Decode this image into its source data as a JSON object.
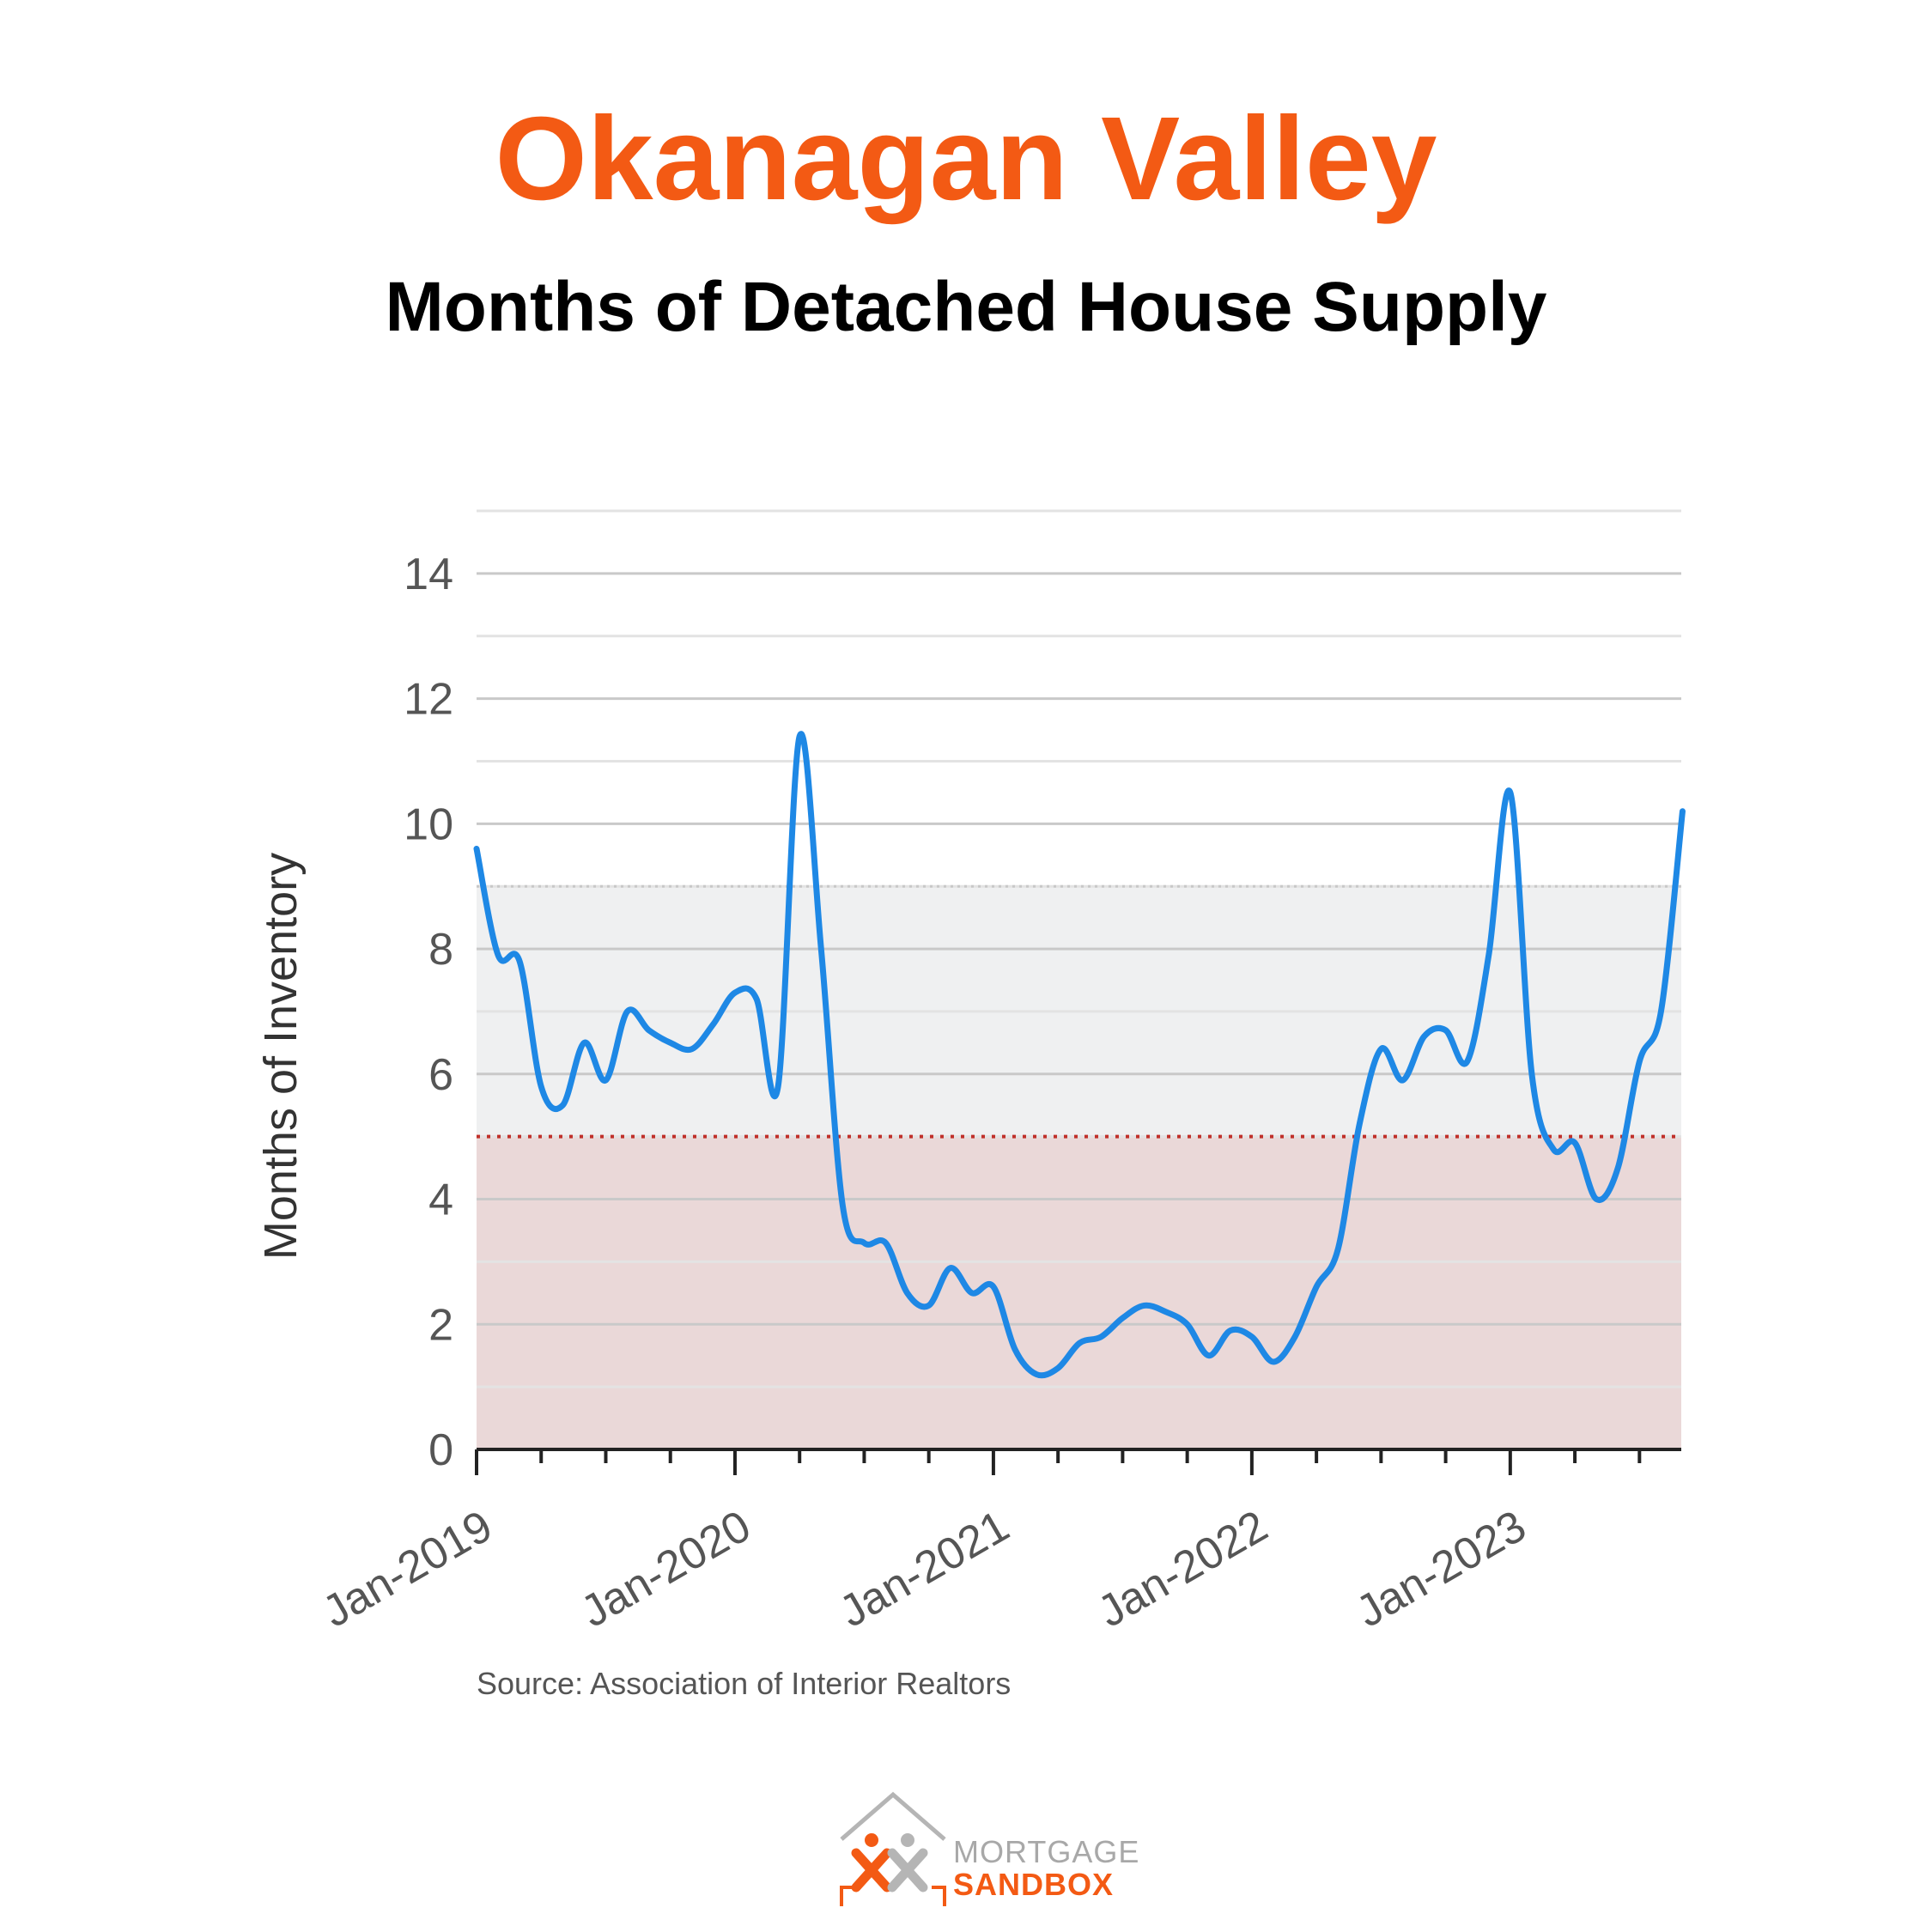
{
  "header": {
    "title": "Okanagan Valley",
    "subtitle": "Months of Detached House Supply"
  },
  "source": "Source: Association of Interior Realtors",
  "logo": {
    "line1": "MORTGAGE",
    "line2": "SANDBOX",
    "icon": "house-outline-icon"
  },
  "colors": {
    "title": "#f35a14",
    "line": "#1e88e5",
    "band_balanced": "#eff0f1",
    "band_sellers": "#ead8d8",
    "threshold_line": "#c0302a"
  },
  "chart_data": {
    "type": "line",
    "title": "",
    "xlabel": "",
    "ylabel": "Months of Inventory",
    "ylim": [
      0,
      15
    ],
    "yticks": [
      "0",
      "2",
      "4",
      "6",
      "8",
      "10",
      "12",
      "14"
    ],
    "xticks": [
      "Jan-2019",
      "Jan-2020",
      "Jan-2021",
      "Jan-2022",
      "Jan-2023"
    ],
    "grid": true,
    "bands": [
      {
        "from": 0,
        "to": 5
      },
      {
        "from": 5,
        "to": 9
      }
    ],
    "threshold": 5,
    "series": [
      {
        "x": [
          "2019-01",
          "2019-02",
          "2019-03",
          "2019-04",
          "2019-05",
          "2019-06",
          "2019-07",
          "2019-08",
          "2019-09",
          "2019-10",
          "2019-11",
          "2019-12",
          "2020-01",
          "2020-02",
          "2020-03",
          "2020-04",
          "2020-05",
          "2020-06",
          "2020-07",
          "2020-08",
          "2020-09",
          "2020-10",
          "2020-11",
          "2020-12",
          "2021-01",
          "2021-02",
          "2021-03",
          "2021-04",
          "2021-05",
          "2021-06",
          "2021-07",
          "2021-08",
          "2021-09",
          "2021-10",
          "2021-11",
          "2021-12",
          "2022-01",
          "2022-02",
          "2022-03",
          "2022-04",
          "2022-05",
          "2022-06",
          "2022-07",
          "2022-08",
          "2022-09",
          "2022-10",
          "2022-11",
          "2022-12",
          "2023-01",
          "2023-02",
          "2023-03",
          "2023-04",
          "2023-05",
          "2023-06",
          "2023-07",
          "2023-08",
          "2023-09"
        ],
        "values": [
          9.6,
          7.9,
          7.8,
          5.8,
          5.5,
          6.5,
          5.9,
          7.0,
          6.7,
          6.5,
          6.4,
          6.8,
          7.3,
          7.2,
          5.8,
          11.4,
          8.0,
          3.9,
          3.3,
          3.3,
          2.5,
          2.3,
          2.9,
          2.5,
          2.6,
          1.6,
          1.2,
          1.3,
          1.7,
          1.8,
          2.1,
          2.3,
          2.2,
          2.0,
          1.5,
          1.9,
          1.8,
          1.4,
          1.8,
          2.6,
          3.2,
          5.2,
          6.4,
          5.9,
          6.6,
          6.7,
          6.2,
          7.9,
          10.5,
          6.0,
          4.8,
          4.9,
          4.0,
          4.5,
          6.2,
          7.0,
          10.2
        ]
      }
    ]
  }
}
